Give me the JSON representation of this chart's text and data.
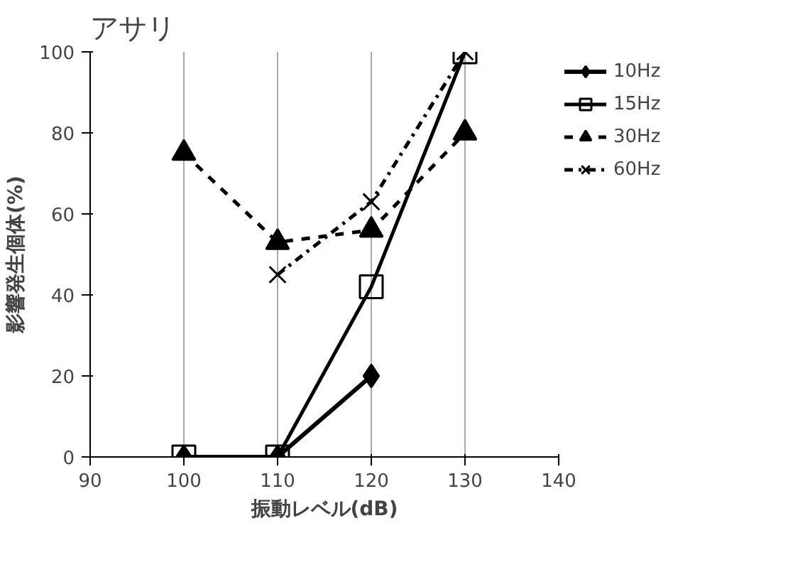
{
  "chart_data": {
    "type": "line",
    "title": "アサリ",
    "xlabel": "振動レベル(dB)",
    "ylabel": "影響発生個体(%)",
    "x": [
      100,
      110,
      120,
      130
    ],
    "xlim": [
      90,
      140
    ],
    "xticks": [
      90,
      100,
      110,
      120,
      130,
      140
    ],
    "ylim": [
      0,
      100
    ],
    "yticks": [
      0,
      20,
      40,
      60,
      80,
      100
    ],
    "grid": "x",
    "legend": "right",
    "series": [
      {
        "name": "10Hz",
        "color": "#000000",
        "marker": "diamond",
        "line_style": "solid",
        "values": [
          0,
          0,
          20,
          null
        ]
      },
      {
        "name": "15Hz",
        "color": "#000000",
        "marker": "square",
        "line_style": "solid",
        "values": [
          0,
          0,
          42,
          100
        ]
      },
      {
        "name": "30Hz",
        "color": "#000000",
        "marker": "triangle",
        "line_style": "dashed",
        "values": [
          75,
          53,
          56,
          80
        ]
      },
      {
        "name": "60Hz",
        "color": "#000000",
        "marker": "cross",
        "line_style": "dashdot",
        "values": [
          null,
          45,
          63,
          100
        ]
      }
    ]
  }
}
